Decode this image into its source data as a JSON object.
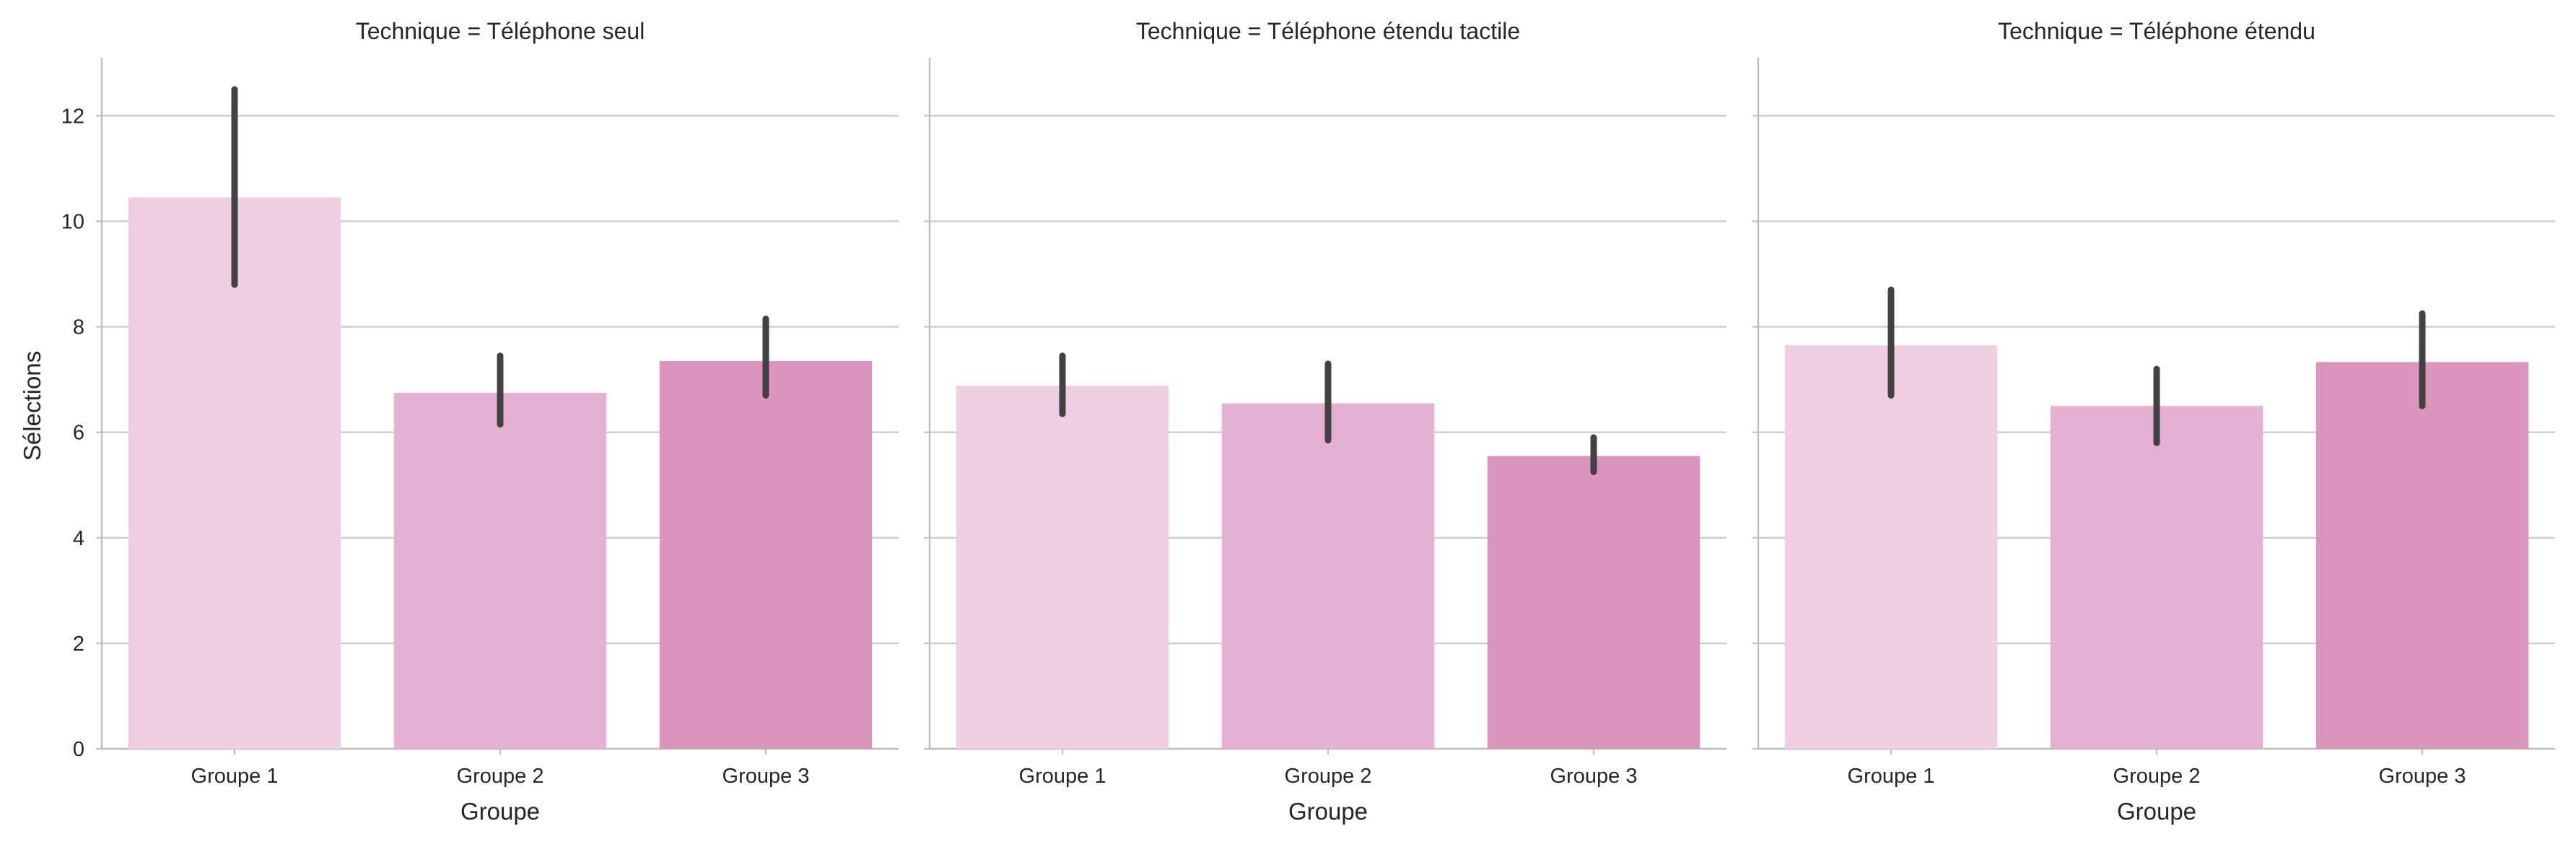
{
  "chart_data": {
    "type": "bar",
    "ylabel": "Sélections",
    "xlabel": "Groupe",
    "ylim": [
      0,
      13.1
    ],
    "yticks": [
      0,
      2,
      4,
      6,
      8,
      10,
      12
    ],
    "grid": true,
    "categories": [
      "Groupe 1",
      "Groupe 2",
      "Groupe 3"
    ],
    "colors": [
      "#efcde3",
      "#e5b0d1",
      "#da94be"
    ],
    "errorbar_color": "#424242",
    "panels": [
      {
        "title": "Technique = Téléphone seul",
        "values": [
          10.45,
          6.75,
          7.35
        ],
        "err_low": [
          8.8,
          6.15,
          6.7
        ],
        "err_high": [
          12.5,
          7.45,
          8.15
        ]
      },
      {
        "title": "Technique = Téléphone étendu tactile",
        "values": [
          6.88,
          6.55,
          5.55
        ],
        "err_low": [
          6.35,
          5.85,
          5.25
        ],
        "err_high": [
          7.45,
          7.3,
          5.9
        ]
      },
      {
        "title": "Technique = Téléphone étendu",
        "values": [
          7.65,
          6.5,
          7.33
        ],
        "err_low": [
          6.7,
          5.8,
          6.5
        ],
        "err_high": [
          8.7,
          7.2,
          8.25
        ]
      }
    ]
  }
}
